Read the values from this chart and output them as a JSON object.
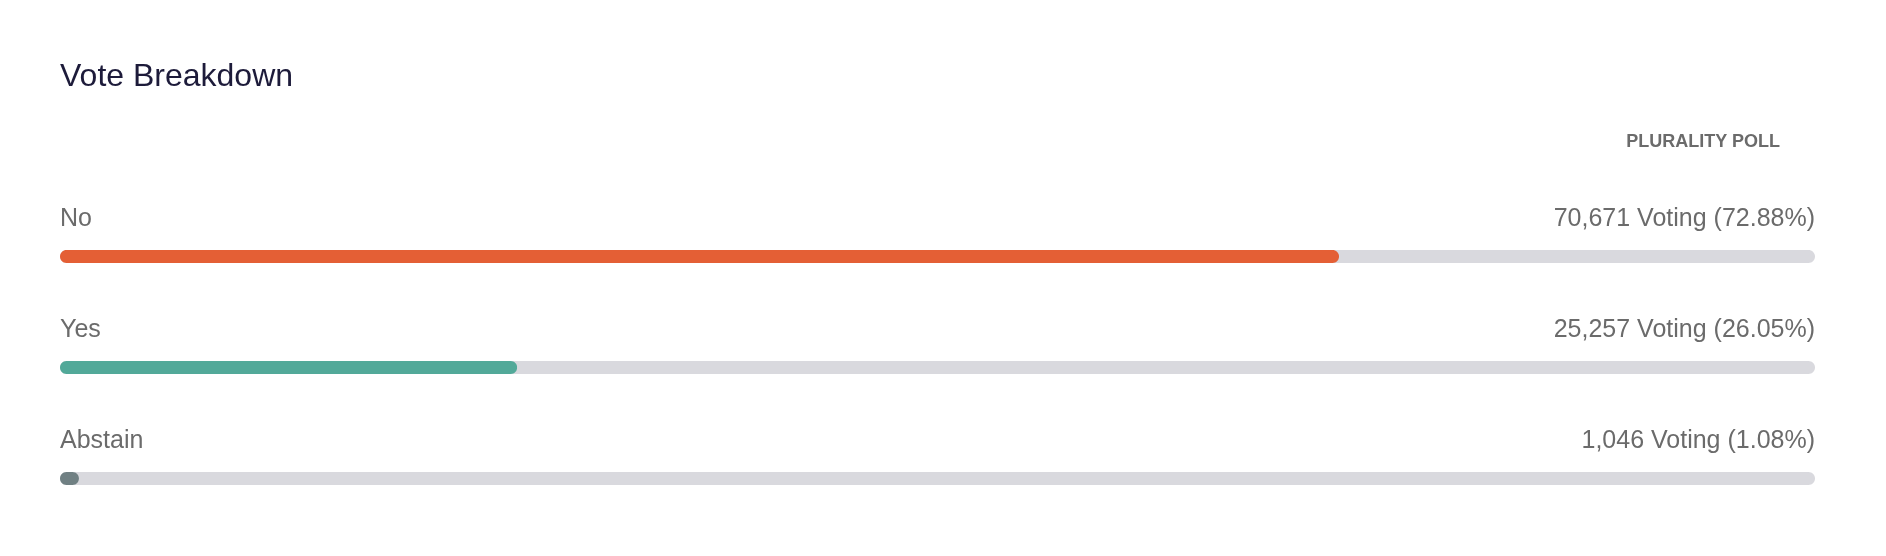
{
  "chart_data": {
    "type": "bar",
    "orientation": "horizontal",
    "title": "Vote Breakdown",
    "annotations": [
      "PLURALITY POLL"
    ],
    "categories": [
      "No",
      "Yes",
      "Abstain"
    ],
    "values": [
      72.88,
      26.05,
      1.08
    ],
    "colors": [
      "#e45f35",
      "#52a999",
      "#708083"
    ],
    "value_labels": [
      "70,671 Voting (72.88%)",
      "25,257 Voting (26.05%)",
      "1,046 Voting (1.08%)"
    ],
    "xlim": [
      0,
      100
    ],
    "grid": false,
    "legend": false
  }
}
